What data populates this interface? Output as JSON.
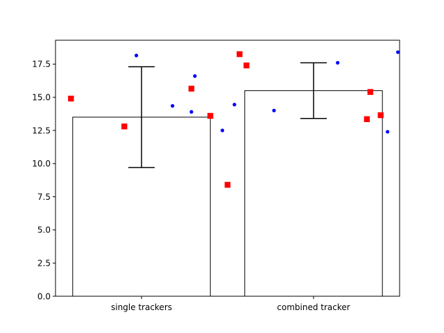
{
  "chart_data": {
    "type": "bar",
    "title": "",
    "xlabel": "",
    "ylabel": "",
    "categories": [
      "single trackers",
      "combined tracker"
    ],
    "values": [
      13.5,
      15.5
    ],
    "error_bars": [
      {
        "low": 9.7,
        "high": 17.3
      },
      {
        "low": 13.4,
        "high": 17.6
      }
    ],
    "ylim": [
      0,
      19.3
    ],
    "yticks": [
      0.0,
      2.5,
      5.0,
      7.5,
      10.0,
      12.5,
      15.0,
      17.5
    ],
    "ytick_labels": [
      "0.0",
      "2.5",
      "5.0",
      "7.5",
      "10.0",
      "12.5",
      "15.0",
      "17.5"
    ],
    "bar_fill": "#ffffff",
    "bar_edge": "#000000",
    "grid": false,
    "legend": "none",
    "scatter_series": [
      {
        "marker": "circle",
        "color": "#0000ff",
        "points": [
          {
            "x": -0.03,
            "y": 18.15
          },
          {
            "x": 0.18,
            "y": 14.35
          },
          {
            "x": 0.29,
            "y": 13.9
          },
          {
            "x": 0.31,
            "y": 16.6
          },
          {
            "x": 0.47,
            "y": 12.5
          },
          {
            "x": 0.54,
            "y": 14.45
          },
          {
            "x": 0.77,
            "y": 14.0
          },
          {
            "x": 1.14,
            "y": 17.6
          },
          {
            "x": 1.43,
            "y": 12.4
          },
          {
            "x": 1.49,
            "y": 18.4
          }
        ]
      },
      {
        "marker": "square",
        "color": "#ff0000",
        "points": [
          {
            "x": -0.41,
            "y": 14.9
          },
          {
            "x": -0.1,
            "y": 12.8
          },
          {
            "x": 0.29,
            "y": 15.65
          },
          {
            "x": 0.4,
            "y": 13.6
          },
          {
            "x": 0.5,
            "y": 8.4
          },
          {
            "x": 0.57,
            "y": 18.25
          },
          {
            "x": 0.61,
            "y": 17.4
          },
          {
            "x": 1.31,
            "y": 13.35
          },
          {
            "x": 1.33,
            "y": 15.4
          },
          {
            "x": 1.39,
            "y": 13.65
          }
        ]
      }
    ]
  }
}
